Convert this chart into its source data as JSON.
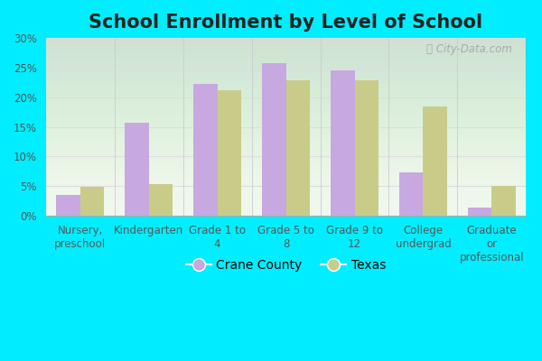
{
  "title": "School Enrollment by Level of School",
  "categories": [
    "Nursery,\npreschool",
    "Kindergarten",
    "Grade 1 to\n4",
    "Grade 5 to\n8",
    "Grade 9 to\n12",
    "College\nundergrad",
    "Graduate\nor\nprofessional"
  ],
  "crane_county": [
    3.5,
    15.7,
    22.3,
    25.8,
    24.5,
    7.3,
    1.3
  ],
  "texas": [
    4.9,
    5.3,
    21.1,
    22.8,
    22.9,
    18.4,
    5.0
  ],
  "crane_color": "#c8a8e0",
  "texas_color": "#c8cc88",
  "crane_label": "Crane County",
  "texas_label": "Texas",
  "ylim": [
    0,
    30
  ],
  "yticks": [
    0,
    5,
    10,
    15,
    20,
    25,
    30
  ],
  "ytick_labels": [
    "0%",
    "5%",
    "10%",
    "15%",
    "20%",
    "25%",
    "30%"
  ],
  "outer_bg": "#00eeff",
  "plot_bg": "#f0f8ee",
  "bar_width": 0.35,
  "title_fontsize": 15,
  "tick_fontsize": 8.5,
  "legend_fontsize": 10,
  "watermark": "City-Data.com",
  "grid_color": "#dddddd",
  "spine_color": "#aaaaaa"
}
